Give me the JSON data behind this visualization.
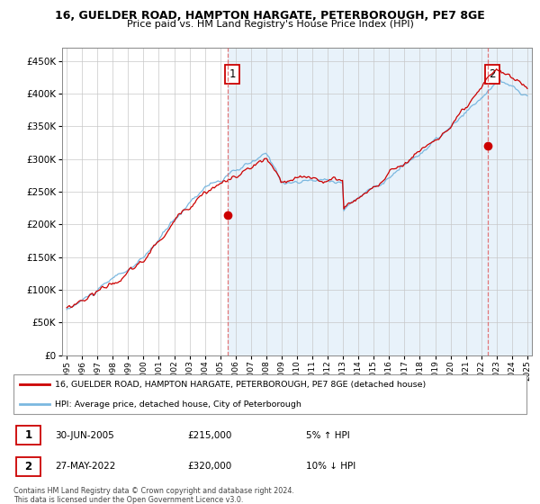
{
  "title": "16, GUELDER ROAD, HAMPTON HARGATE, PETERBOROUGH, PE7 8GE",
  "subtitle": "Price paid vs. HM Land Registry's House Price Index (HPI)",
  "legend_line1": "16, GUELDER ROAD, HAMPTON HARGATE, PETERBOROUGH, PE7 8GE (detached house)",
  "legend_line2": "HPI: Average price, detached house, City of Peterborough",
  "annotation1_date": "30-JUN-2005",
  "annotation1_price": "£215,000",
  "annotation1_hpi": "5% ↑ HPI",
  "annotation2_date": "27-MAY-2022",
  "annotation2_price": "£320,000",
  "annotation2_hpi": "10% ↓ HPI",
  "footnote": "Contains HM Land Registry data © Crown copyright and database right 2024.\nThis data is licensed under the Open Government Licence v3.0.",
  "hpi_color": "#7bb8e0",
  "price_color": "#cc0000",
  "annotation_color": "#cc0000",
  "dashed_line_color": "#e06060",
  "bg_highlight_color": "#e8f2fa",
  "ylim": [
    0,
    470000
  ],
  "yticks": [
    0,
    50000,
    100000,
    150000,
    200000,
    250000,
    300000,
    350000,
    400000,
    450000
  ],
  "ytick_labels": [
    "£0",
    "£50K",
    "£100K",
    "£150K",
    "£200K",
    "£250K",
    "£300K",
    "£350K",
    "£400K",
    "£450K"
  ],
  "sale1_year": 2005.5,
  "sale1_price": 215000,
  "sale2_year": 2022.42,
  "sale2_price": 320000,
  "xlim_start": 1994.7,
  "xlim_end": 2025.3
}
